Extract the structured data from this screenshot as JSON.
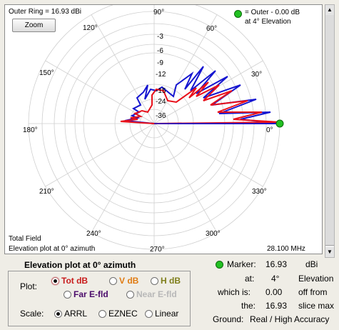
{
  "plot": {
    "outer_ring": "Outer Ring = 16.93 dBi",
    "zoom_label": "Zoom",
    "legend_line1": "= Outer - 0.00 dB",
    "legend_line2": "at 4° Elevation",
    "angle_labels": [
      "90°",
      "60°",
      "30°",
      "0°",
      "330°",
      "300°",
      "270°",
      "240°",
      "210°",
      "180°",
      "150°",
      "120°"
    ],
    "db_labels": [
      "-3",
      "-6",
      "-9",
      "-12",
      "-15",
      "-24",
      "-36"
    ],
    "field_type": "Total Field",
    "plot_desc": "Elevation plot at 0° azimuth",
    "frequency": "28.100 MHz",
    "colors": {
      "total": "#e8101a",
      "secondary": "#1515d0",
      "marker": "#22c022"
    }
  },
  "panel": {
    "title": "Elevation plot at 0° azimuth",
    "plot_label": "Plot:",
    "tot_db": "Tot dB",
    "v_db": "V dB",
    "h_db": "H dB",
    "far_efld": "Far E-fld",
    "near_efld": "Near E-fld",
    "scale_label": "Scale:",
    "arrl": "ARRL",
    "eznec": "EZNEC",
    "linear": "Linear"
  },
  "marker": {
    "label": "Marker:",
    "gain": "16.93",
    "gain_unit": "dBi",
    "at_label": "at:",
    "elevation": "4°",
    "elevation_label": "Elevation",
    "which_label": "which is:",
    "offset": "0.00",
    "offset_label": "off from",
    "the_label": "the:",
    "slice_max": "16.93",
    "slice_label": "slice max",
    "ground_label": "Ground:",
    "ground_value": "Real / High Accuracy"
  }
}
